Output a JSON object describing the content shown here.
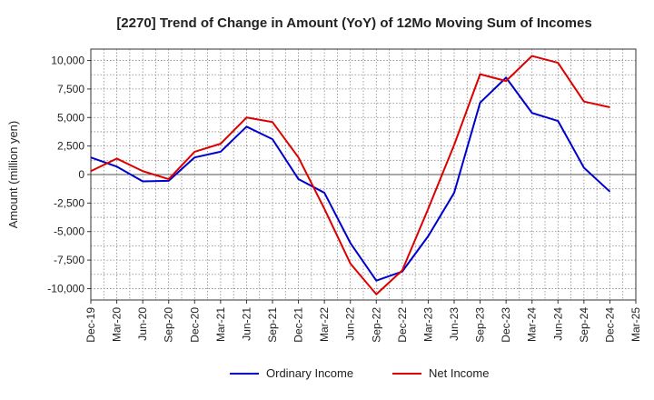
{
  "chart_data": {
    "type": "line",
    "title": "[2270]  Trend of Change in Amount (YoY) of 12Mo Moving Sum of Incomes",
    "xlabel": "",
    "ylabel": "Amount (million yen)",
    "categories": [
      "Dec-19",
      "Mar-20",
      "Jun-20",
      "Sep-20",
      "Dec-20",
      "Mar-21",
      "Jun-21",
      "Sep-21",
      "Dec-21",
      "Mar-22",
      "Jun-22",
      "Sep-22",
      "Dec-22",
      "Mar-23",
      "Jun-23",
      "Sep-23",
      "Dec-23",
      "Mar-24",
      "Jun-24",
      "Sep-24",
      "Dec-24",
      "Mar-25"
    ],
    "ylim": [
      -11000,
      11000
    ],
    "yticks": [
      -10000,
      -7500,
      -5000,
      -2500,
      0,
      2500,
      5000,
      7500,
      10000
    ],
    "ytick_labels": [
      "-10,000",
      "-7,500",
      "-5,000",
      "-2,500",
      "0",
      "2,500",
      "5,000",
      "7,500",
      "10,000"
    ],
    "grid": true,
    "legend_position": "bottom",
    "series": [
      {
        "name": "Ordinary Income",
        "color": "#0000cc",
        "values": [
          1500,
          700,
          -600,
          -550,
          1500,
          2000,
          4200,
          3100,
          -400,
          -1600,
          -6000,
          -9300,
          -8500,
          -5400,
          -1600,
          6300,
          8500,
          5400,
          4700,
          600,
          -1500,
          null
        ]
      },
      {
        "name": "Net Income",
        "color": "#dd0000",
        "values": [
          300,
          1400,
          300,
          -400,
          2000,
          2700,
          5000,
          4600,
          1500,
          -3000,
          -7800,
          -10500,
          -8400,
          -3000,
          2600,
          8800,
          8200,
          10400,
          9800,
          6400,
          5900,
          null
        ]
      }
    ]
  }
}
